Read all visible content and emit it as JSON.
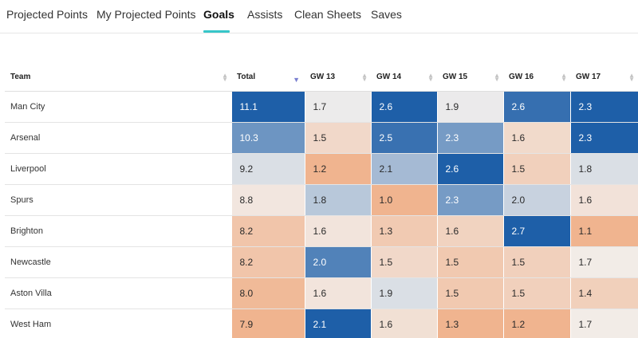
{
  "tabs": [
    {
      "label": "Projected Points",
      "active": false
    },
    {
      "label": "My Projected Points",
      "active": false
    },
    {
      "label": "Goals",
      "active": true
    },
    {
      "label": "Assists",
      "active": false
    },
    {
      "label": "Clean Sheets",
      "active": false
    },
    {
      "label": "Saves",
      "active": false
    }
  ],
  "table": {
    "headers": [
      "Team",
      "Total",
      "GW 13",
      "GW 14",
      "GW 15",
      "GW 16",
      "GW 17"
    ],
    "sorted_column": "Total",
    "rows": [
      {
        "team": "Man City",
        "values": [
          "11.1",
          "1.7",
          "2.6",
          "1.9",
          "2.6",
          "2.3"
        ]
      },
      {
        "team": "Arsenal",
        "values": [
          "10.3",
          "1.5",
          "2.5",
          "2.3",
          "1.6",
          "2.3"
        ]
      },
      {
        "team": "Liverpool",
        "values": [
          "9.2",
          "1.2",
          "2.1",
          "2.6",
          "1.5",
          "1.8"
        ]
      },
      {
        "team": "Spurs",
        "values": [
          "8.8",
          "1.8",
          "1.0",
          "2.3",
          "2.0",
          "1.6"
        ]
      },
      {
        "team": "Brighton",
        "values": [
          "8.2",
          "1.6",
          "1.3",
          "1.6",
          "2.7",
          "1.1"
        ]
      },
      {
        "team": "Newcastle",
        "values": [
          "8.2",
          "2.0",
          "1.5",
          "1.5",
          "1.5",
          "1.7"
        ]
      },
      {
        "team": "Aston Villa",
        "values": [
          "8.0",
          "1.6",
          "1.9",
          "1.5",
          "1.5",
          "1.4"
        ]
      },
      {
        "team": "West Ham",
        "values": [
          "7.9",
          "2.1",
          "1.6",
          "1.3",
          "1.2",
          "1.7"
        ]
      }
    ]
  },
  "colors": {
    "accent_underline": "#37c6c9",
    "sort_arrow_active": "#7a7fd0",
    "high_blue": "#1e5fa8",
    "neutral": "#f2efed",
    "low_orange": "#f0b48f"
  }
}
